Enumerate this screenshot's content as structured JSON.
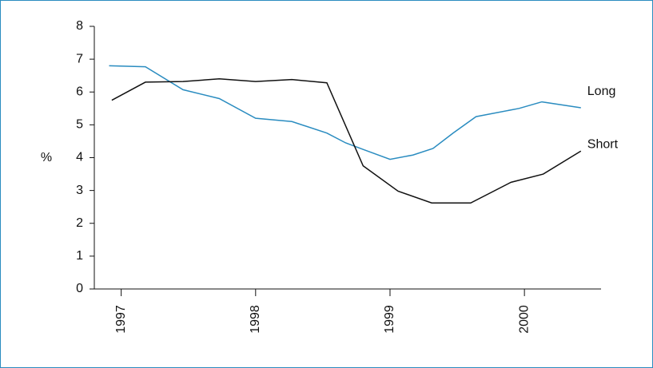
{
  "chart_data": {
    "type": "line",
    "ylabel": "%",
    "xlim": [
      1996.8,
      2000.57
    ],
    "xticks": [
      1997,
      1998,
      1999,
      2000
    ],
    "ylim": [
      0,
      8
    ],
    "yticks": [
      0,
      1,
      2,
      3,
      4,
      5,
      6,
      7,
      8
    ],
    "series": [
      {
        "name": "Long",
        "color": "#2a8cc0",
        "x": [
          1996.91,
          1997.18,
          1997.46,
          1997.73,
          1998.0,
          1998.27,
          1998.53,
          1998.67,
          1998.8,
          1999.0,
          1999.17,
          1999.32,
          1999.47,
          1999.64,
          1999.96,
          2000.13,
          2000.42
        ],
        "values": [
          6.8,
          6.77,
          6.07,
          5.8,
          5.2,
          5.1,
          4.75,
          4.45,
          4.25,
          3.95,
          4.08,
          4.28,
          4.75,
          5.25,
          5.5,
          5.7,
          5.52
        ]
      },
      {
        "name": "Short",
        "color": "#111111",
        "x": [
          1996.93,
          1997.18,
          1997.46,
          1997.73,
          1998.0,
          1998.27,
          1998.53,
          1998.8,
          1999.06,
          1999.31,
          1999.6,
          1999.9,
          2000.14,
          2000.42
        ],
        "values": [
          5.75,
          6.3,
          6.32,
          6.4,
          6.32,
          6.38,
          6.28,
          3.75,
          2.98,
          2.62,
          2.62,
          3.25,
          3.5,
          4.2
        ]
      }
    ]
  }
}
